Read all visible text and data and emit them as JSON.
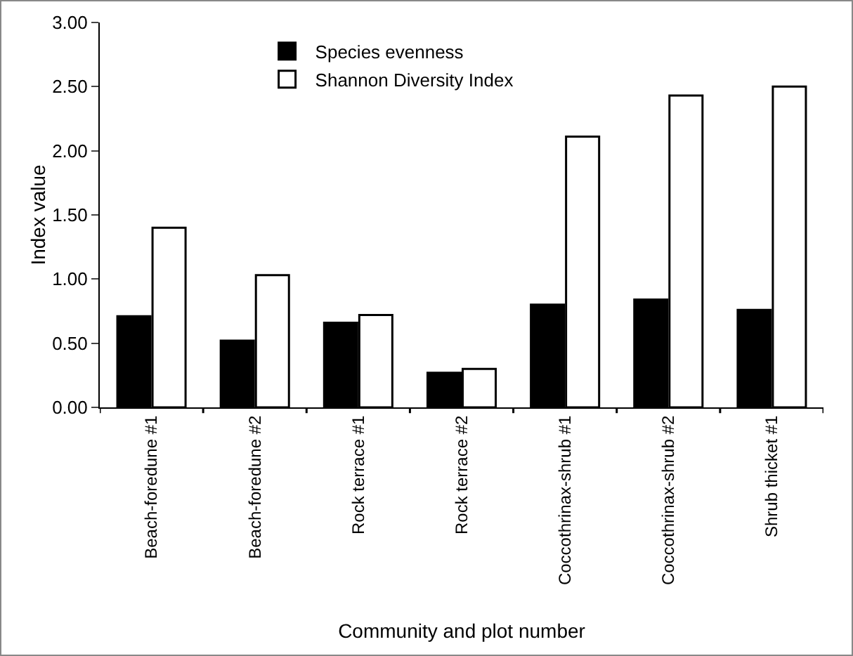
{
  "chart_data": {
    "type": "bar",
    "xlabel": "Community and plot number",
    "ylabel": "Index value",
    "categories": [
      "Beach-foredune #1",
      "Beach-foredune #2",
      "Rock terrace #1",
      "Rock terrace #2",
      "Coccothrinax-shrub #1",
      "Coccothrinax-shrub #2",
      "Shrub thicket #1"
    ],
    "series": [
      {
        "name": "Species evenness",
        "color": "#000000",
        "values": [
          0.71,
          0.52,
          0.66,
          0.27,
          0.8,
          0.84,
          0.76
        ]
      },
      {
        "name": "Shannon Diversity Index",
        "color": "#ffffff",
        "values": [
          1.4,
          1.03,
          0.72,
          0.3,
          2.11,
          2.43,
          2.5
        ]
      }
    ],
    "ylim": [
      0,
      3
    ],
    "yticks": [
      {
        "value": 0,
        "label": "0.00"
      },
      {
        "value": 0.5,
        "label": "0.50"
      },
      {
        "value": 1,
        "label": "1.00"
      },
      {
        "value": 1.5,
        "label": "1.50"
      },
      {
        "value": 2,
        "label": "2.00"
      },
      {
        "value": 2.5,
        "label": "2.50"
      },
      {
        "value": 3,
        "label": "3.00"
      }
    ],
    "grid": false,
    "legend": "top left"
  }
}
